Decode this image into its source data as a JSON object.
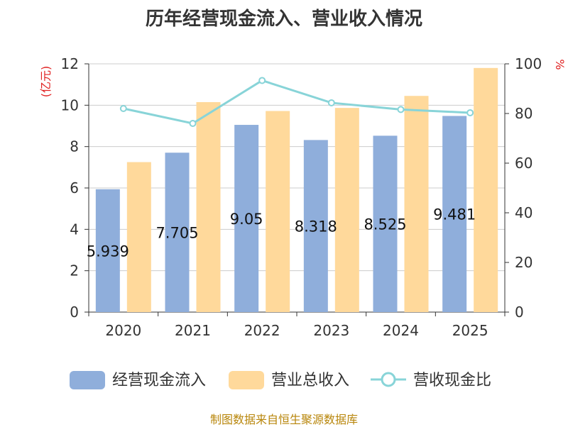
{
  "title": "历年经营现金流入、营业收入情况",
  "source": "制图数据来自恒生聚源数据库",
  "colors": {
    "cash_inflow": "#8faedb",
    "revenue": "#ffd99b",
    "ratio_line": "#88d4d8",
    "axis_unit": "#e02020",
    "text": "#333333"
  },
  "chart_data": {
    "type": "bar",
    "categories": [
      "2020",
      "2021",
      "2022",
      "2023",
      "2024",
      "2025"
    ],
    "series": [
      {
        "name": "经营现金流入",
        "type": "bar",
        "axis": "left",
        "values": [
          5.939,
          7.705,
          9.05,
          8.318,
          8.525,
          9.481
        ],
        "labels": [
          "5.939",
          "7.705",
          "9.05",
          "8.318",
          "8.525",
          "9.481"
        ]
      },
      {
        "name": "营业总收入",
        "type": "bar",
        "axis": "left",
        "values": [
          7.25,
          10.15,
          9.72,
          9.87,
          10.45,
          11.8
        ]
      },
      {
        "name": "营收现金比",
        "type": "line",
        "axis": "right",
        "values": [
          82,
          76,
          93.3,
          84.3,
          81.6,
          80.3
        ]
      }
    ],
    "y_left": {
      "label": "(亿元)",
      "ylim": [
        0,
        12
      ],
      "ticks": [
        0,
        2,
        4,
        6,
        8,
        10,
        12
      ]
    },
    "y_right": {
      "label": "%",
      "ylim": [
        0,
        100
      ],
      "ticks": [
        0,
        20,
        40,
        60,
        80,
        100
      ]
    },
    "grid": true,
    "legend": "bottom"
  }
}
